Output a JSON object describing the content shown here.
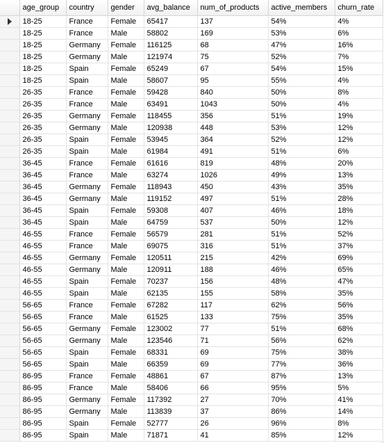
{
  "grid": {
    "columns": [
      "age_group",
      "country",
      "gender",
      "avg_balance",
      "num_of_products",
      "active_members",
      "churn_rate"
    ],
    "rows": [
      [
        "18-25",
        "France",
        "Female",
        "65417",
        "137",
        "54%",
        "4%"
      ],
      [
        "18-25",
        "France",
        "Male",
        "58802",
        "169",
        "53%",
        "6%"
      ],
      [
        "18-25",
        "Germany",
        "Female",
        "116125",
        "68",
        "47%",
        "16%"
      ],
      [
        "18-25",
        "Germany",
        "Male",
        "121974",
        "75",
        "52%",
        "7%"
      ],
      [
        "18-25",
        "Spain",
        "Female",
        "65249",
        "67",
        "54%",
        "15%"
      ],
      [
        "18-25",
        "Spain",
        "Male",
        "58607",
        "95",
        "55%",
        "4%"
      ],
      [
        "26-35",
        "France",
        "Female",
        "59428",
        "840",
        "50%",
        "8%"
      ],
      [
        "26-35",
        "France",
        "Male",
        "63491",
        "1043",
        "50%",
        "4%"
      ],
      [
        "26-35",
        "Germany",
        "Female",
        "118455",
        "356",
        "51%",
        "19%"
      ],
      [
        "26-35",
        "Germany",
        "Male",
        "120938",
        "448",
        "53%",
        "12%"
      ],
      [
        "26-35",
        "Spain",
        "Female",
        "53945",
        "364",
        "52%",
        "12%"
      ],
      [
        "26-35",
        "Spain",
        "Male",
        "61984",
        "491",
        "51%",
        "6%"
      ],
      [
        "36-45",
        "France",
        "Female",
        "61616",
        "819",
        "48%",
        "20%"
      ],
      [
        "36-45",
        "France",
        "Male",
        "63274",
        "1026",
        "49%",
        "13%"
      ],
      [
        "36-45",
        "Germany",
        "Female",
        "118943",
        "450",
        "43%",
        "35%"
      ],
      [
        "36-45",
        "Germany",
        "Male",
        "119152",
        "497",
        "51%",
        "28%"
      ],
      [
        "36-45",
        "Spain",
        "Female",
        "59308",
        "407",
        "46%",
        "18%"
      ],
      [
        "36-45",
        "Spain",
        "Male",
        "64759",
        "537",
        "50%",
        "12%"
      ],
      [
        "46-55",
        "France",
        "Female",
        "56579",
        "281",
        "51%",
        "52%"
      ],
      [
        "46-55",
        "France",
        "Male",
        "69075",
        "316",
        "51%",
        "37%"
      ],
      [
        "46-55",
        "Germany",
        "Female",
        "120511",
        "215",
        "42%",
        "69%"
      ],
      [
        "46-55",
        "Germany",
        "Male",
        "120911",
        "188",
        "46%",
        "65%"
      ],
      [
        "46-55",
        "Spain",
        "Female",
        "70237",
        "156",
        "48%",
        "47%"
      ],
      [
        "46-55",
        "Spain",
        "Male",
        "62135",
        "155",
        "58%",
        "35%"
      ],
      [
        "56-65",
        "France",
        "Female",
        "67282",
        "117",
        "62%",
        "56%"
      ],
      [
        "56-65",
        "France",
        "Male",
        "61525",
        "133",
        "75%",
        "35%"
      ],
      [
        "56-65",
        "Germany",
        "Female",
        "123002",
        "77",
        "51%",
        "68%"
      ],
      [
        "56-65",
        "Germany",
        "Male",
        "123546",
        "71",
        "56%",
        "62%"
      ],
      [
        "56-65",
        "Spain",
        "Female",
        "68331",
        "69",
        "75%",
        "38%"
      ],
      [
        "56-65",
        "Spain",
        "Male",
        "66359",
        "69",
        "77%",
        "36%"
      ],
      [
        "86-95",
        "France",
        "Female",
        "48861",
        "67",
        "87%",
        "13%"
      ],
      [
        "86-95",
        "France",
        "Male",
        "58406",
        "66",
        "95%",
        "5%"
      ],
      [
        "86-95",
        "Germany",
        "Female",
        "117392",
        "27",
        "70%",
        "41%"
      ],
      [
        "86-95",
        "Germany",
        "Male",
        "113839",
        "37",
        "86%",
        "14%"
      ],
      [
        "86-95",
        "Spain",
        "Female",
        "52777",
        "26",
        "96%",
        "8%"
      ],
      [
        "86-95",
        "Spain",
        "Male",
        "71871",
        "41",
        "85%",
        "12%"
      ]
    ],
    "current_row": 0
  }
}
